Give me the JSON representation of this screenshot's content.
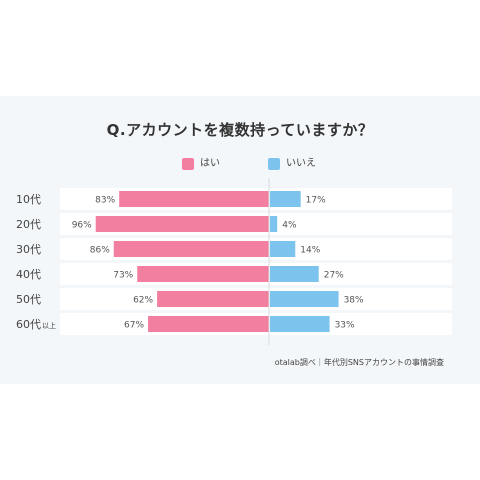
{
  "title": "Q.アカウントを複数持っていますか？",
  "source": "otalab調べ｜年代別SNSアカウントの事情調査",
  "colors": {
    "yes": "#f27ea0",
    "no": "#7cc4ee",
    "row_bg": "#ffffff",
    "divider": "#d6dbe0",
    "card_bg": "#f4f7f9"
  },
  "chart_data": {
    "type": "bar",
    "orientation": "horizontal-diverging",
    "categories": [
      {
        "main": "10代",
        "suffix": ""
      },
      {
        "main": "20代",
        "suffix": ""
      },
      {
        "main": "30代",
        "suffix": ""
      },
      {
        "main": "40代",
        "suffix": ""
      },
      {
        "main": "50代",
        "suffix": ""
      },
      {
        "main": "60代",
        "suffix": "以上"
      }
    ],
    "series": [
      {
        "name": "はい",
        "values": [
          83,
          96,
          86,
          73,
          62,
          67
        ],
        "labels": [
          "83%",
          "96%",
          "86%",
          "73%",
          "62%",
          "67%"
        ]
      },
      {
        "name": "いいえ",
        "values": [
          17,
          4,
          14,
          27,
          38,
          33
        ],
        "labels": [
          "17%",
          "4%",
          "14%",
          "27%",
          "38%",
          "33%"
        ]
      }
    ],
    "xlim": [
      0,
      100
    ],
    "legend_position": "top-center",
    "grid": false
  }
}
